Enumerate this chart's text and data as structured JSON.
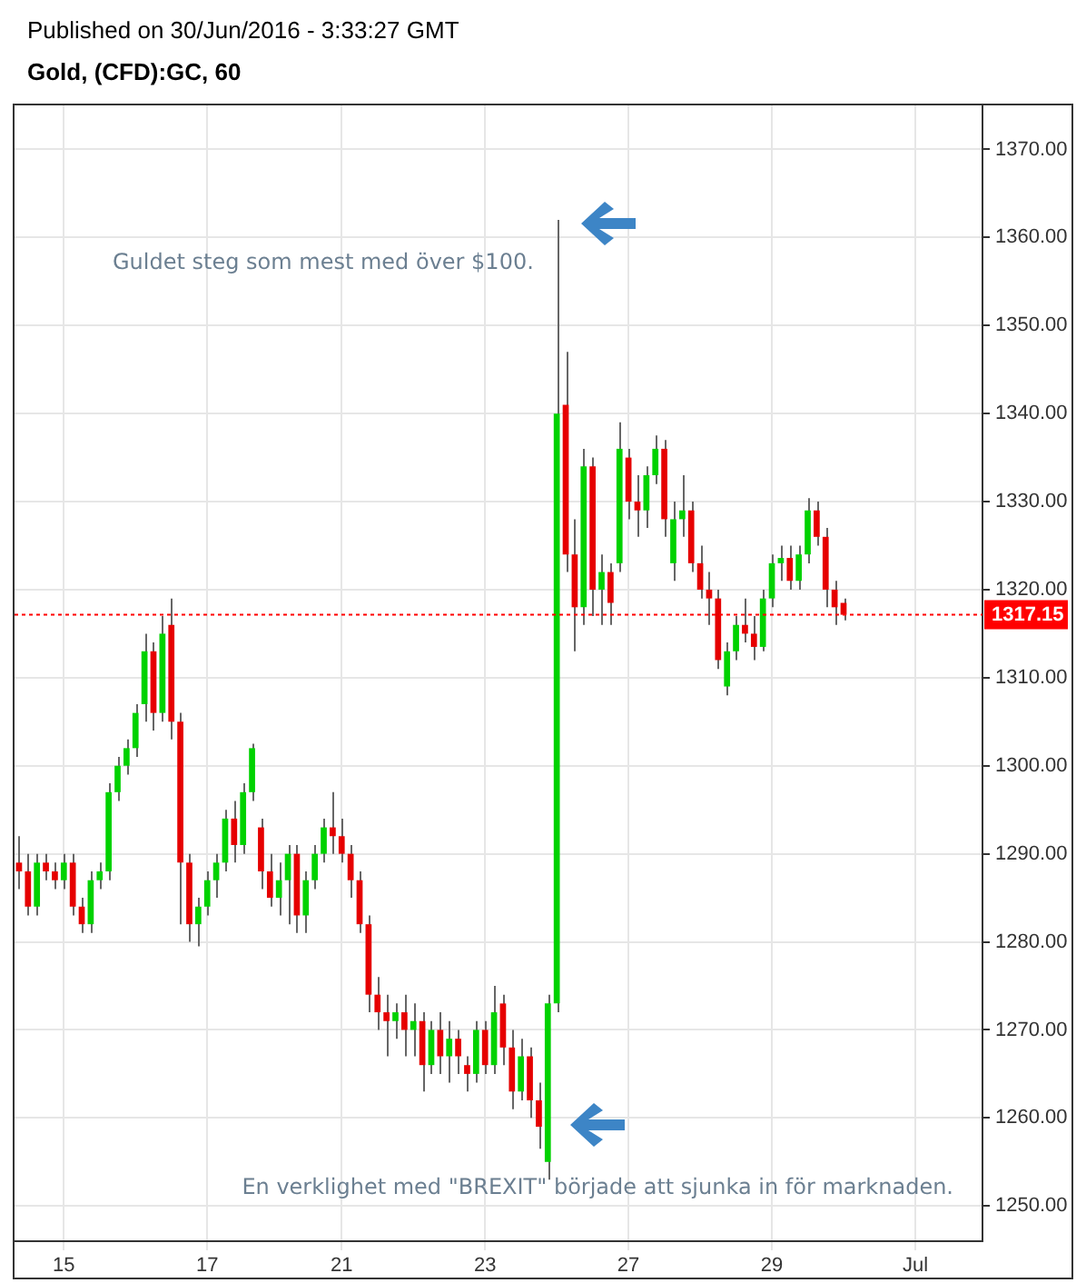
{
  "chart_data": {
    "type": "candlestick",
    "subtitle": "Published on 30/Jun/2016 - 3:33:27 GMT",
    "title": "Gold, (CFD):GC, 60",
    "categories": [
      null,
      null,
      null,
      null,
      null,
      "15",
      null,
      null,
      null,
      null,
      null,
      null,
      null,
      null,
      null,
      null,
      null,
      null,
      null,
      null,
      null,
      "17",
      null,
      null,
      null,
      null,
      null,
      null,
      null,
      null,
      null,
      null,
      null,
      null,
      null,
      null,
      "21",
      null,
      null,
      null,
      null,
      null,
      null,
      null,
      null,
      null,
      null,
      null,
      null,
      null,
      null,
      null,
      "23",
      null,
      null,
      null,
      null,
      null,
      null,
      null,
      null,
      null,
      null,
      null,
      null,
      null,
      null,
      null,
      "27",
      null,
      null,
      null,
      null,
      null,
      null,
      null,
      null,
      null,
      null,
      null,
      null,
      null,
      null,
      null,
      "29",
      null,
      null,
      null,
      null,
      null,
      null,
      null,
      null,
      null,
      null,
      null,
      null,
      null,
      null,
      null,
      "Jul",
      null,
      null,
      null,
      null,
      null,
      null,
      null
    ],
    "ohlc": [
      [
        1289,
        1292,
        1286,
        1288
      ],
      [
        1288,
        1290,
        1283,
        1284
      ],
      [
        1284,
        1290,
        1283,
        1289
      ],
      [
        1289,
        1290,
        1287,
        1288
      ],
      [
        1288,
        1289,
        1286,
        1287
      ],
      [
        1287,
        1290,
        1286,
        1289
      ],
      [
        1289,
        1290,
        1283,
        1284
      ],
      [
        1284,
        1285,
        1281,
        1282
      ],
      [
        1282,
        1288,
        1281,
        1287
      ],
      [
        1287,
        1289,
        1286,
        1288
      ],
      [
        1288,
        1298,
        1287,
        1297
      ],
      [
        1297,
        1301,
        1296,
        1300
      ],
      [
        1300,
        1303,
        1299,
        1302
      ],
      [
        1302,
        1307,
        1301,
        1306
      ],
      [
        1307,
        1315,
        1305,
        1313
      ],
      [
        1313,
        1314,
        1304,
        1306
      ],
      [
        1306,
        1317,
        1305,
        1315
      ],
      [
        1316,
        1319,
        1303,
        1305
      ],
      [
        1305,
        1306,
        1282,
        1289
      ],
      [
        1289,
        1290,
        1280,
        1282
      ],
      [
        1282,
        1285,
        1279.5,
        1284
      ],
      [
        1284,
        1288,
        1283,
        1287
      ],
      [
        1287,
        1290,
        1285,
        1289
      ],
      [
        1289,
        1295,
        1288,
        1294
      ],
      [
        1294,
        1296,
        1289,
        1291
      ],
      [
        1291,
        1298,
        1290,
        1297
      ],
      [
        1297,
        1302.5,
        1296,
        1302
      ],
      [
        1293,
        1294,
        1286,
        1288
      ],
      [
        1288,
        1290,
        1284,
        1285
      ],
      [
        1285,
        1289,
        1283,
        1287
      ],
      [
        1287,
        1291,
        1282,
        1290
      ],
      [
        1290,
        1291,
        1281,
        1283
      ],
      [
        1283,
        1288,
        1281,
        1287
      ],
      [
        1287,
        1291,
        1286,
        1290
      ],
      [
        1290,
        1294,
        1289,
        1293
      ],
      [
        1293,
        1297,
        1290,
        1292
      ],
      [
        1292,
        1294,
        1289,
        1290
      ],
      [
        1290,
        1291,
        1285,
        1287
      ],
      [
        1287,
        1288,
        1281,
        1282
      ],
      [
        1282,
        1283,
        1272,
        1274
      ],
      [
        1274,
        1276,
        1270,
        1272
      ],
      [
        1272,
        1274,
        1267,
        1271
      ],
      [
        1271,
        1273,
        1269,
        1272
      ],
      [
        1272,
        1274,
        1267,
        1270
      ],
      [
        1270,
        1273,
        1267,
        1271
      ],
      [
        1271,
        1272,
        1263,
        1266
      ],
      [
        1266,
        1271,
        1265,
        1270
      ],
      [
        1270,
        1272,
        1265,
        1267
      ],
      [
        1267,
        1271,
        1264,
        1269
      ],
      [
        1269,
        1270,
        1265,
        1267
      ],
      [
        1266,
        1267,
        1263,
        1265
      ],
      [
        1265,
        1271,
        1264,
        1270
      ],
      [
        1270,
        1271,
        1265,
        1266
      ],
      [
        1266,
        1275,
        1265,
        1272
      ],
      [
        1273,
        1274,
        1266,
        1268
      ],
      [
        1268,
        1270,
        1261,
        1263
      ],
      [
        1263,
        1269,
        1262,
        1267
      ],
      [
        1267,
        1268,
        1260,
        1262
      ],
      [
        1262,
        1264,
        1256.5,
        1259
      ],
      [
        1255,
        1274,
        1253,
        1273
      ],
      [
        1273,
        1362,
        1272,
        1340
      ],
      [
        1341,
        1347,
        1322,
        1324
      ],
      [
        1324,
        1328,
        1313,
        1318
      ],
      [
        1318,
        1336,
        1316,
        1334
      ],
      [
        1334,
        1335,
        1317,
        1320
      ],
      [
        1320,
        1324,
        1316,
        1322
      ],
      [
        1322,
        1323,
        1316,
        1318.5
      ],
      [
        1323,
        1339,
        1322,
        1336
      ],
      [
        1335,
        1336,
        1328,
        1330
      ],
      [
        1330,
        1333,
        1326,
        1329
      ],
      [
        1329,
        1334,
        1327,
        1333
      ],
      [
        1333,
        1337.5,
        1332,
        1336
      ],
      [
        1336,
        1337,
        1326,
        1328
      ],
      [
        1323,
        1330,
        1321,
        1328
      ],
      [
        1328,
        1333,
        1326,
        1329
      ],
      [
        1329,
        1330,
        1322,
        1323
      ],
      [
        1323,
        1325,
        1319,
        1320
      ],
      [
        1320,
        1322,
        1316,
        1319
      ],
      [
        1319,
        1320,
        1311,
        1312
      ],
      [
        1309,
        1314,
        1308,
        1313
      ],
      [
        1313,
        1317,
        1312,
        1316
      ],
      [
        1316,
        1319,
        1314,
        1315
      ],
      [
        1315,
        1317,
        1312,
        1313.5
      ],
      [
        1313.5,
        1320,
        1313,
        1319
      ],
      [
        1319,
        1324,
        1318,
        1323
      ],
      [
        1323,
        1325,
        1321,
        1323.6
      ],
      [
        1323.6,
        1325,
        1320,
        1321
      ],
      [
        1321,
        1325,
        1320,
        1324
      ],
      [
        1324,
        1330.4,
        1323,
        1329
      ],
      [
        1329,
        1330,
        1325,
        1326
      ],
      [
        1326,
        1327,
        1318,
        1320
      ],
      [
        1320,
        1321,
        1316,
        1318
      ],
      [
        1318.5,
        1319,
        1316.5,
        1317.15
      ],
      null,
      null,
      null,
      null,
      null,
      null,
      null,
      null,
      null,
      null,
      null,
      null,
      null,
      null,
      null
    ],
    "colors": [
      "#e60000",
      "#e60000",
      "#00d200",
      "#e60000",
      "#e60000",
      "#00d200",
      "#e60000",
      "#e60000",
      "#00d200",
      "#00d200",
      "#00d200",
      "#00d200",
      "#00d200",
      "#00d200",
      "#00d200",
      "#e60000",
      "#00d200",
      "#e60000",
      "#e60000",
      "#e60000",
      "#00d200",
      "#00d200",
      "#00d200",
      "#00d200",
      "#e60000",
      "#00d200",
      "#00d200",
      "#e60000",
      "#e60000",
      "#00d200",
      "#00d200",
      "#e60000",
      "#00d200",
      "#00d200",
      "#00d200",
      "#e60000",
      "#e60000",
      "#e60000",
      "#e60000",
      "#e60000",
      "#e60000",
      "#e60000",
      "#00d200",
      "#e60000",
      "#00d200",
      "#e60000",
      "#00d200",
      "#e60000",
      "#00d200",
      "#e60000",
      "#e60000",
      "#00d200",
      "#e60000",
      "#00d200",
      "#e60000",
      "#e60000",
      "#00d200",
      "#e60000",
      "#e60000",
      "#00d200",
      "#00d200",
      "#e60000",
      "#e60000",
      "#00d200",
      "#e60000",
      "#00d200",
      "#e60000",
      "#00d200",
      "#e60000",
      "#e60000",
      "#00d200",
      "#00d200",
      "#e60000",
      "#00d200",
      "#00d200",
      "#e60000",
      "#e60000",
      "#e60000",
      "#e60000",
      "#00d200",
      "#00d200",
      "#e60000",
      "#e60000",
      "#00d200",
      "#00d200",
      "#00d200",
      "#e60000",
      "#00d200",
      "#00d200",
      "#e60000",
      "#e60000",
      "#e60000",
      "#e60000",
      null,
      null,
      null,
      null,
      null,
      null,
      null,
      null,
      null,
      null,
      null,
      null,
      null,
      null,
      null
    ],
    "ylim": [
      1246,
      1375
    ],
    "yticks": [
      {
        "value": 1250,
        "label": "1250.00"
      },
      {
        "value": 1260,
        "label": "1260.00"
      },
      {
        "value": 1270,
        "label": "1270.00"
      },
      {
        "value": 1280,
        "label": "1280.00"
      },
      {
        "value": 1290,
        "label": "1290.00"
      },
      {
        "value": 1300,
        "label": "1300.00"
      },
      {
        "value": 1310,
        "label": "1310.00"
      },
      {
        "value": 1320,
        "label": "1320.00"
      },
      {
        "value": 1330,
        "label": "1330.00"
      },
      {
        "value": 1340,
        "label": "1340.00"
      },
      {
        "value": 1350,
        "label": "1350.00"
      },
      {
        "value": 1360,
        "label": "1360.00"
      },
      {
        "value": 1370,
        "label": "1370.00"
      }
    ],
    "grid": true,
    "ref_lines": [
      {
        "axis": "y",
        "value": 1317.15,
        "label": "1317.15",
        "color": "#ff0000",
        "line_style": "dotted"
      }
    ],
    "annotations": [
      "Guldet steg som mest med över $100.",
      "En verklighet med \"BREXIT\" började att sjunka in för marknaden."
    ]
  }
}
